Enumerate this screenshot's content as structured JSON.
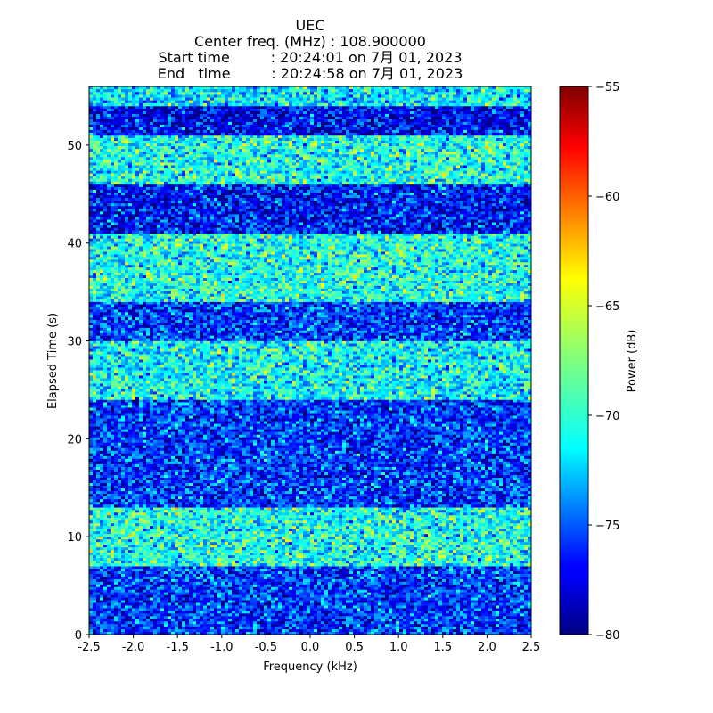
{
  "chart_data": {
    "type": "heatmap",
    "title_lines": [
      "UEC",
      "Center freq. (MHz) : 108.900000",
      "Start time         : 20:24:01 on 7月 01, 2023",
      "End   time         : 20:24:58 on 7月 01, 2023"
    ],
    "xlabel": "Frequency (kHz)",
    "ylabel": "Elapsed Time (s)",
    "colorbar_label": "Power (dB)",
    "xlim": [
      -2.5,
      2.5
    ],
    "ylim": [
      0,
      56
    ],
    "clim": [
      -80,
      -55
    ],
    "colormap": "jet",
    "x_ticks": [
      "-2.5",
      "-2.0",
      "-1.5",
      "-1.0",
      "-0.5",
      "0.0",
      "0.5",
      "1.0",
      "1.5",
      "2.0",
      "2.5"
    ],
    "y_ticks": [
      "0",
      "10",
      "20",
      "30",
      "40",
      "50"
    ],
    "colorbar_ticks": [
      "−80",
      "−75",
      "−70",
      "−65",
      "−60",
      "−55"
    ],
    "time_bands": [
      {
        "t_start": 0,
        "t_end": 7,
        "mean_power_db": -75.5
      },
      {
        "t_start": 7,
        "t_end": 13,
        "mean_power_db": -70.0
      },
      {
        "t_start": 13,
        "t_end": 24,
        "mean_power_db": -75.5
      },
      {
        "t_start": 24,
        "t_end": 30,
        "mean_power_db": -70.5
      },
      {
        "t_start": 30,
        "t_end": 34,
        "mean_power_db": -75.5
      },
      {
        "t_start": 34,
        "t_end": 41,
        "mean_power_db": -70.0
      },
      {
        "t_start": 41,
        "t_end": 46,
        "mean_power_db": -76.5
      },
      {
        "t_start": 46,
        "t_end": 51,
        "mean_power_db": -70.0
      },
      {
        "t_start": 51,
        "t_end": 54,
        "mean_power_db": -77.0
      },
      {
        "t_start": 54,
        "t_end": 56,
        "mean_power_db": -71.0
      }
    ]
  }
}
